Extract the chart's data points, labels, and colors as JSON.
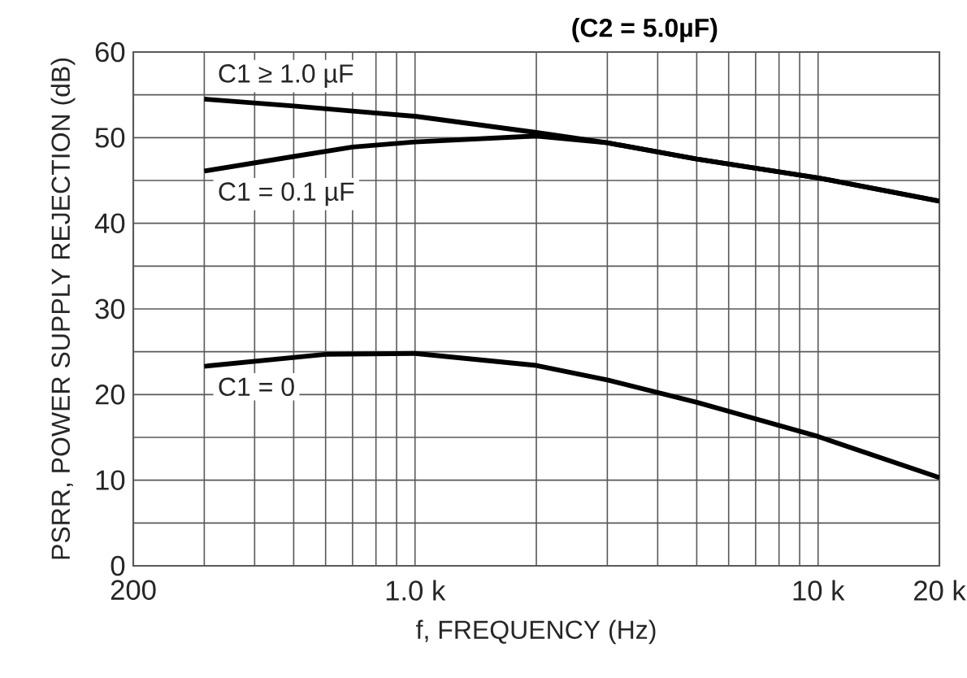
{
  "chart_data": {
    "type": "line",
    "title": "(C2 = 5.0µF)",
    "xlabel": "f, FREQUENCY (Hz)",
    "ylabel": "PSRR, POWER SUPPLY REJECTION (dB)",
    "log": "x",
    "xlim": [
      200,
      20000
    ],
    "ylim": [
      0,
      60
    ],
    "xticks": [
      200,
      {
        "value": 300,
        "label": null
      },
      {
        "value": 400,
        "label": null
      },
      {
        "value": 500,
        "label": null
      },
      {
        "value": 600,
        "label": null
      },
      {
        "value": 700,
        "label": null
      },
      {
        "value": 800,
        "label": null
      },
      {
        "value": 900,
        "label": null
      },
      {
        "value": 1000,
        "label": "1.0 k"
      },
      {
        "value": 2000,
        "label": null
      },
      {
        "value": 3000,
        "label": null
      },
      {
        "value": 4000,
        "label": null
      },
      {
        "value": 5000,
        "label": null
      },
      {
        "value": 6000,
        "label": null
      },
      {
        "value": 7000,
        "label": null
      },
      {
        "value": 8000,
        "label": null
      },
      {
        "value": 9000,
        "label": null
      },
      {
        "value": 10000,
        "label": "10 k"
      },
      {
        "value": 20000,
        "label": "20 k"
      }
    ],
    "yticks": [
      0,
      {
        "value": 5,
        "label": null
      },
      10,
      {
        "value": 15,
        "label": null
      },
      20,
      {
        "value": 25,
        "label": null
      },
      30,
      {
        "value": 35,
        "label": null
      },
      40,
      {
        "value": 45,
        "label": null
      },
      50,
      {
        "value": 55,
        "label": null
      },
      60
    ],
    "grid": true,
    "legend": false,
    "marker": "none",
    "line_style": "solid",
    "series": [
      {
        "name": "C1 ≥ 1.0 µF",
        "color": "#000000",
        "x": [
          300,
          500,
          700,
          1000,
          2000,
          3000,
          5000,
          10000,
          20000
        ],
        "values": [
          54.5,
          53.7,
          53.1,
          52.5,
          50.6,
          49.4,
          47.5,
          45.3,
          42.6
        ]
      },
      {
        "name": "C1 = 0.1 µF",
        "color": "#000000",
        "x": [
          300,
          500,
          700,
          1000,
          2000,
          3000,
          5000,
          10000,
          20000
        ],
        "values": [
          46.1,
          47.8,
          48.9,
          49.5,
          50.2,
          49.4,
          47.5,
          45.3,
          42.6
        ]
      },
      {
        "name": "C1 = 0",
        "color": "#000000",
        "x": [
          300,
          600,
          1000,
          2000,
          3000,
          5000,
          10000,
          20000
        ],
        "values": [
          23.3,
          24.7,
          24.8,
          23.4,
          21.7,
          19.1,
          15.1,
          10.3
        ]
      }
    ]
  }
}
